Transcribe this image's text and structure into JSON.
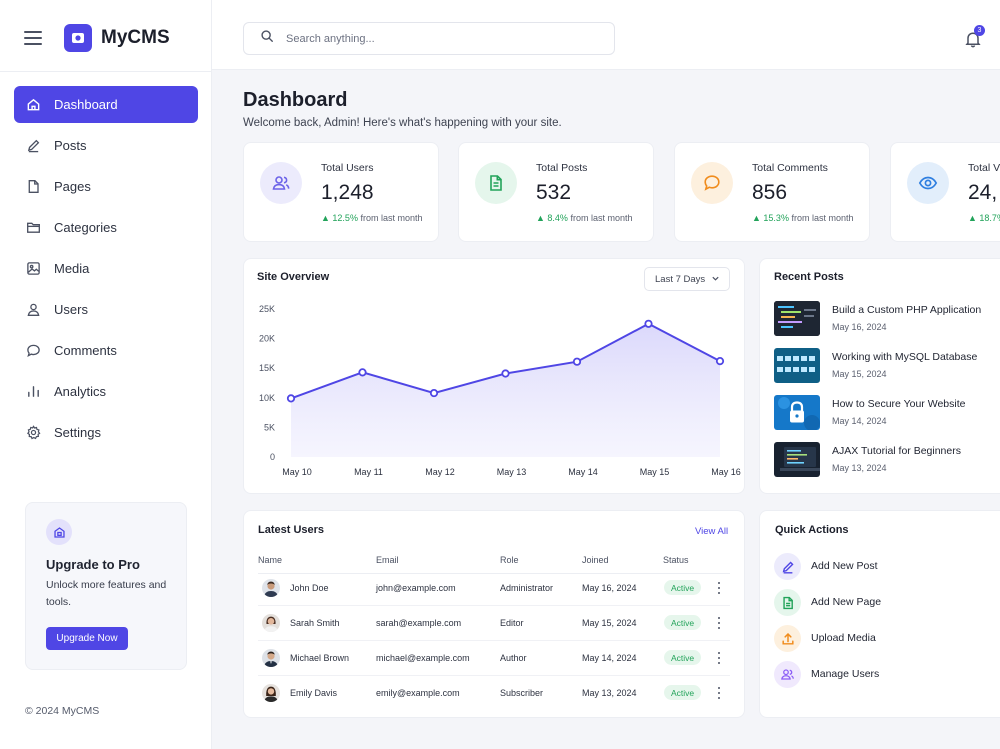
{
  "app": {
    "name": "MyCMS"
  },
  "search": {
    "placeholder": "Search anything..."
  },
  "notifications": {
    "count": "3"
  },
  "sidebar": {
    "items": [
      {
        "label": "Dashboard",
        "icon": "home-icon",
        "active": true
      },
      {
        "label": "Posts",
        "icon": "pencil-icon"
      },
      {
        "label": "Pages",
        "icon": "file-icon"
      },
      {
        "label": "Categories",
        "icon": "folder-icon"
      },
      {
        "label": "Media",
        "icon": "image-icon"
      },
      {
        "label": "Users",
        "icon": "user-icon"
      },
      {
        "label": "Comments",
        "icon": "chat-bubble-icon"
      },
      {
        "label": "Analytics",
        "icon": "bar-chart-icon"
      },
      {
        "label": "Settings",
        "icon": "gear-icon"
      }
    ]
  },
  "upgrade": {
    "title": "Upgrade to Pro",
    "text": "Unlock more features and tools.",
    "button": "Upgrade Now"
  },
  "footer": {
    "copyright": "© 2024 MyCMS"
  },
  "header": {
    "title": "Dashboard",
    "subtitle": "Welcome back, Admin! Here's what's happening with your site."
  },
  "stats": [
    {
      "label": "Total Users",
      "value": "1,248",
      "change": "12.5%",
      "suffix": "from last month",
      "icon": "users-icon",
      "color": "#6c63e8",
      "bg": "#ecebfc"
    },
    {
      "label": "Total Posts",
      "value": "532",
      "change": "8.4%",
      "suffix": "from last month",
      "icon": "document-icon",
      "color": "#22a35a",
      "bg": "#e5f6ec"
    },
    {
      "label": "Total Comments",
      "value": "856",
      "change": "15.3%",
      "suffix": "from last month",
      "icon": "comment-icon",
      "color": "#f08c1d",
      "bg": "#fdf0de"
    },
    {
      "label": "Total V",
      "value": "24,",
      "change": "18.7%",
      "suffix": "",
      "icon": "eye-icon",
      "color": "#2f7fe0",
      "bg": "#e2eefb"
    }
  ],
  "overview": {
    "title": "Site Overview",
    "range": "Last 7 Days"
  },
  "chart_data": {
    "type": "area",
    "title": "Site Overview",
    "categories": [
      "May 10",
      "May 11",
      "May 12",
      "May 13",
      "May 14",
      "May 15",
      "May 16"
    ],
    "series": [
      {
        "values": [
          9900,
          14300,
          10800,
          14100,
          16100,
          22500,
          16200
        ]
      }
    ],
    "ylim": [
      0,
      25000
    ],
    "yticks": [
      "0",
      "5K",
      "10K",
      "15K",
      "20K",
      "25K"
    ],
    "grid": false,
    "colors": {
      "line": "#4f46e5",
      "fill": "#e4e2fb"
    }
  },
  "recent_posts": {
    "title": "Recent Posts",
    "items": [
      {
        "title": "Build a Custom PHP Application",
        "date": "May 16, 2024",
        "thumb": "code-screen"
      },
      {
        "title": "Working with MySQL Database",
        "date": "May 15, 2024",
        "thumb": "database"
      },
      {
        "title": "How to Secure Your Website",
        "date": "May 14, 2024",
        "thumb": "lock"
      },
      {
        "title": "AJAX Tutorial for Beginners",
        "date": "May 13, 2024",
        "thumb": "laptop"
      }
    ]
  },
  "users": {
    "title": "Latest Users",
    "view_all": "View All",
    "columns": [
      "Name",
      "Email",
      "Role",
      "Joined",
      "Status"
    ],
    "rows": [
      {
        "name": "John Doe",
        "email": "john@example.com",
        "role": "Administrator",
        "joined": "May 16, 2024",
        "status": "Active"
      },
      {
        "name": "Sarah Smith",
        "email": "sarah@example.com",
        "role": "Editor",
        "joined": "May 15, 2024",
        "status": "Active"
      },
      {
        "name": "Michael Brown",
        "email": "michael@example.com",
        "role": "Author",
        "joined": "May 14, 2024",
        "status": "Active"
      },
      {
        "name": "Emily Davis",
        "email": "emily@example.com",
        "role": "Subscriber",
        "joined": "May 13, 2024",
        "status": "Active"
      }
    ]
  },
  "quick_actions": {
    "title": "Quick Actions",
    "items": [
      {
        "label": "Add New Post",
        "icon": "pencil-icon",
        "color": "#4f46e5",
        "bg": "#ecebfc"
      },
      {
        "label": "Add New Page",
        "icon": "document-icon",
        "color": "#22a35a",
        "bg": "#e5f6ec"
      },
      {
        "label": "Upload Media",
        "icon": "upload-icon",
        "color": "#f08c1d",
        "bg": "#fdf0de"
      },
      {
        "label": "Manage Users",
        "icon": "users-icon",
        "color": "#8b5cf6",
        "bg": "#f0e9fd"
      }
    ]
  }
}
